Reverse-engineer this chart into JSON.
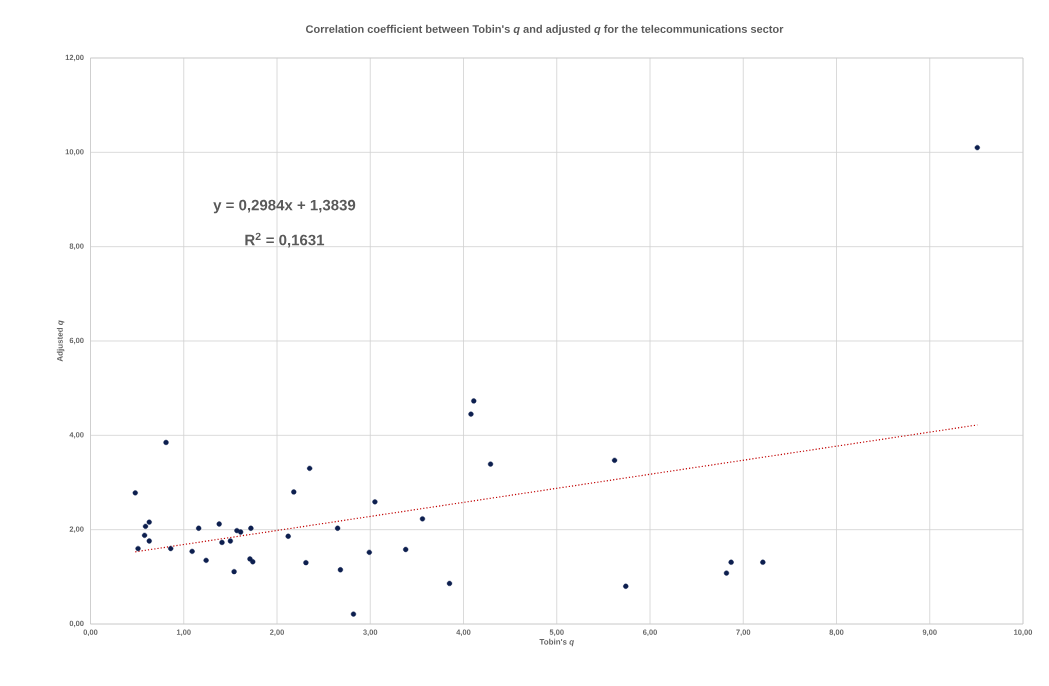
{
  "chart_data": {
    "type": "scatter",
    "title": "Correlation coefficient between Tobin's *q* and adjusted *q* for the telecommunications sector",
    "xlabel": "Tobin's *q*",
    "ylabel": "Adjusted *q*",
    "annotations": [
      "y = 0,2984x + 1,3839",
      "R$^{2}$ = 0,1631"
    ],
    "xlim": [
      0,
      10
    ],
    "ylim": [
      0,
      12
    ],
    "xticks": [
      {
        "value": 0,
        "label": "0,00"
      },
      {
        "value": 1,
        "label": "1,00"
      },
      {
        "value": 2,
        "label": "2,00"
      },
      {
        "value": 3,
        "label": "3,00"
      },
      {
        "value": 4,
        "label": "4,00"
      },
      {
        "value": 5,
        "label": "5,00"
      },
      {
        "value": 6,
        "label": "6,00"
      },
      {
        "value": 7,
        "label": "7,00"
      },
      {
        "value": 8,
        "label": "8,00"
      },
      {
        "value": 9,
        "label": "9,00"
      },
      {
        "value": 10,
        "label": "10,00"
      }
    ],
    "yticks": [
      {
        "value": 0,
        "label": "0,00"
      },
      {
        "value": 2,
        "label": "2,00"
      },
      {
        "value": 4,
        "label": "4,00"
      },
      {
        "value": 6,
        "label": "6,00"
      },
      {
        "value": 8,
        "label": "8,00"
      },
      {
        "value": 10,
        "label": "10,00"
      },
      {
        "value": 12,
        "label": "12,00"
      }
    ],
    "grid": true,
    "marker": "circle",
    "series": [
      {
        "color": "#0d1f4f",
        "x": [
          0.81,
          0.48,
          0.63,
          0.59,
          0.58,
          0.63,
          0.51,
          0.86,
          1.09,
          1.16,
          1.24,
          1.38,
          1.41,
          1.5,
          1.54,
          1.57,
          1.61,
          1.72,
          1.71,
          1.74,
          2.12,
          2.18,
          2.35,
          2.31,
          2.65,
          2.68,
          2.82,
          2.99,
          3.05,
          3.38,
          3.56,
          3.85,
          4.08,
          4.11,
          4.29,
          5.62,
          5.74,
          6.82,
          6.87,
          7.21,
          9.51
        ],
        "values": [
          3.85,
          2.78,
          2.16,
          2.07,
          1.88,
          1.76,
          1.6,
          1.6,
          1.54,
          2.03,
          1.35,
          2.12,
          1.73,
          1.76,
          1.11,
          1.98,
          1.95,
          2.03,
          1.38,
          1.32,
          1.86,
          2.8,
          3.3,
          1.3,
          2.03,
          1.15,
          0.21,
          1.52,
          2.59,
          1.58,
          2.23,
          0.86,
          4.45,
          4.73,
          3.39,
          3.47,
          0.8,
          1.08,
          1.31,
          1.31,
          10.1
        ]
      },
      {
        "type": "line",
        "color": "#c00000",
        "line_style": "dotted",
        "marker": "none",
        "x": [
          0.48,
          9.51
        ],
        "values": [
          1.53,
          4.22
        ]
      }
    ]
  }
}
